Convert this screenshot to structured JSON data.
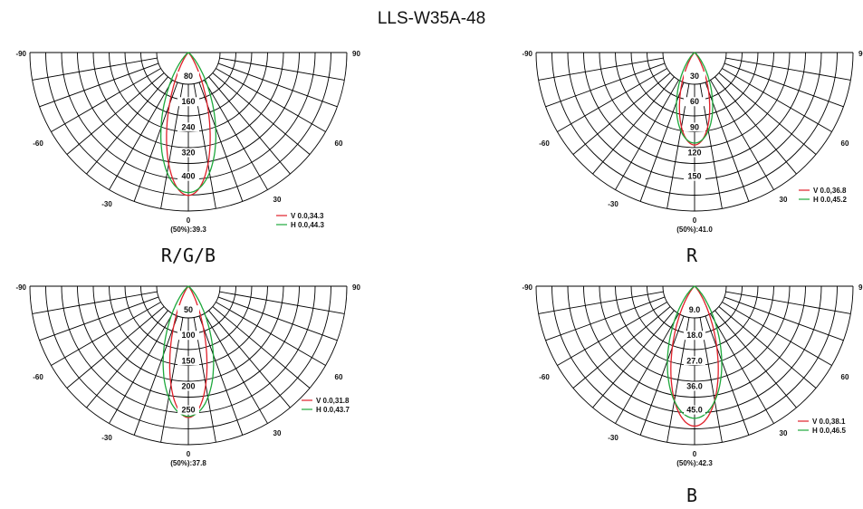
{
  "title": "LLS-W35A-48",
  "colors": {
    "v_curve": "#e0202a",
    "h_curve": "#1ea83c",
    "grid": "#000000"
  },
  "chart_data": [
    {
      "type": "polar",
      "caption": "R/G/B",
      "angle_labels": [
        "-90",
        "90",
        "-60",
        "60",
        "-30",
        "30",
        "0"
      ],
      "radial_labels": [
        "80",
        "160",
        "240",
        "320",
        "400"
      ],
      "rmax": 400,
      "half_angle_label": "(50%):39.3",
      "series": [
        {
          "name": "V 0.0,34.3",
          "color": "#e0202a",
          "peak": 404,
          "half_angle": 17.15
        },
        {
          "name": "H 0.0,44.3",
          "color": "#1ea83c",
          "peak": 396,
          "half_angle": 22.15
        }
      ]
    },
    {
      "type": "polar",
      "caption": "R",
      "angle_labels": [
        "-90",
        "90",
        "-60",
        "60",
        "-30",
        "30",
        "0"
      ],
      "radial_labels": [
        "30",
        "60",
        "90",
        "120",
        "150"
      ],
      "rmax": 150,
      "half_angle_label": "(50%):41.0",
      "series": [
        {
          "name": "V 0.0,36.8",
          "color": "#e0202a",
          "peak": 98,
          "half_angle": 18.4
        },
        {
          "name": "H 0.0,45.2",
          "color": "#1ea83c",
          "peak": 96,
          "half_angle": 22.6
        }
      ]
    },
    {
      "type": "polar",
      "caption": "",
      "angle_labels": [
        "-90",
        "90",
        "-60",
        "60",
        "-30",
        "30",
        "0"
      ],
      "radial_labels": [
        "50",
        "100",
        "150",
        "200",
        "250"
      ],
      "rmax": 250,
      "half_angle_label": "(50%):37.8",
      "series": [
        {
          "name": "V 0.0,31.8",
          "color": "#e0202a",
          "peak": 232,
          "half_angle": 15.9
        },
        {
          "name": "H 0.0,43.7",
          "color": "#1ea83c",
          "peak": 230,
          "half_angle": 21.85
        }
      ]
    },
    {
      "type": "polar",
      "caption": "B",
      "angle_labels": [
        "-90",
        "9",
        "-60",
        "60",
        "-30",
        "30",
        "0"
      ],
      "radial_labels": [
        "9.0",
        "18.0",
        "27.0",
        "36.0",
        "45.0"
      ],
      "rmax": 45,
      "half_angle_label": "(50%):42.3",
      "series": [
        {
          "name": "V 0.0,38.1",
          "color": "#e0202a",
          "peak": 44.5,
          "half_angle": 19.05
        },
        {
          "name": "H 0.0,46.5",
          "color": "#1ea83c",
          "peak": 42,
          "half_angle": 23.25
        }
      ]
    }
  ]
}
